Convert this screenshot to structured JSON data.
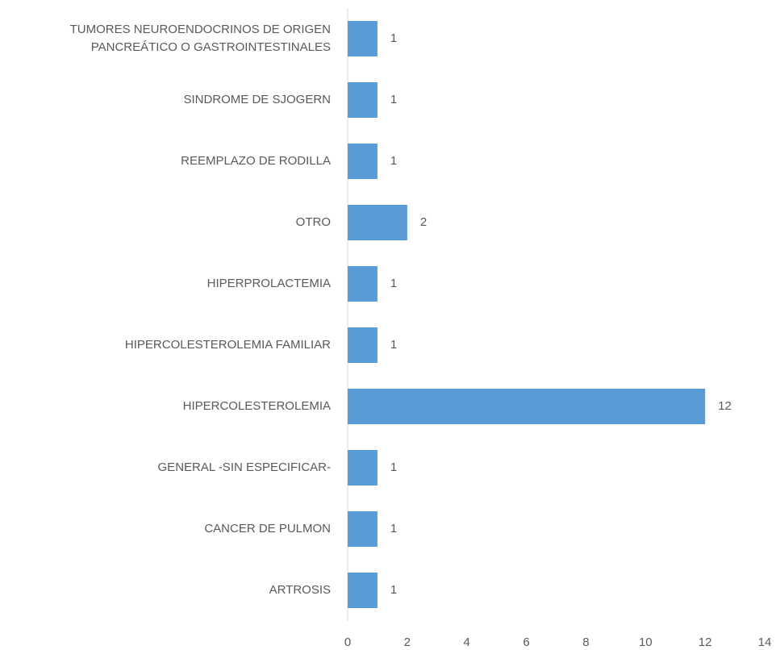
{
  "chart_data": {
    "type": "bar",
    "orientation": "horizontal",
    "categories": [
      "TUMORES NEUROENDOCRINOS DE ORIGEN PANCREÁTICO O GASTROINTESTINALES",
      "SINDROME DE SJOGERN",
      "REEMPLAZO DE RODILLA",
      "OTRO",
      "HIPERPROLACTEMIA",
      "HIPERCOLESTEROLEMIA FAMILIAR",
      "HIPERCOLESTEROLEMIA",
      "GENERAL -SIN ESPECIFICAR-",
      "CANCER DE PULMON",
      "ARTROSIS"
    ],
    "values": [
      1,
      1,
      1,
      2,
      1,
      1,
      12,
      1,
      1,
      1
    ],
    "color": "#5b9bd5",
    "xlim": [
      0,
      14
    ],
    "xticks": [
      0,
      2,
      4,
      6,
      8,
      10,
      12,
      14
    ],
    "grid": false
  }
}
